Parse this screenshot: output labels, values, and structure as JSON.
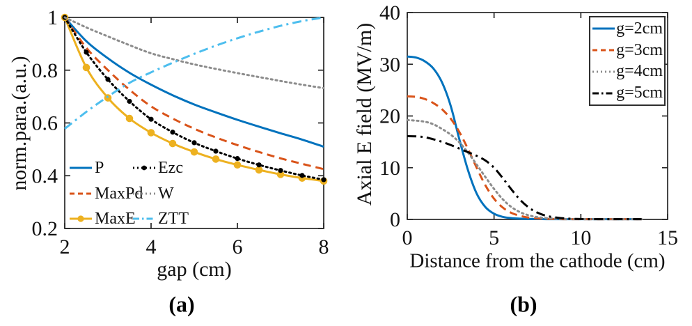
{
  "figure": {
    "caption_a": "(a)",
    "caption_b": "(b)",
    "background": "#ffffff"
  },
  "colors": {
    "blue": "#0072BD",
    "orange": "#D95319",
    "yellow": "#EDB120",
    "black": "#000000",
    "gray": "#8C8C8C",
    "lightblue": "#4DBEEE",
    "axis": "#262626"
  },
  "chart_data": [
    {
      "id": "a",
      "type": "line",
      "title": "",
      "xlabel": "gap (cm)",
      "ylabel": "norm.para.(a.u.)",
      "xlim": [
        2,
        8
      ],
      "ylim": [
        0.2,
        1
      ],
      "grid": false,
      "xticks": [
        2,
        4,
        6,
        8
      ],
      "xtick_labels": [
        "2",
        "4",
        "6",
        "8"
      ],
      "yticks": [
        0.2,
        0.4,
        0.6,
        0.8,
        1
      ],
      "ytick_labels": [
        "0.2",
        "0.4",
        "0.6",
        "0.8",
        "1"
      ],
      "legend": {
        "position": "lower-left inside, two columns",
        "boxed": false
      },
      "x": [
        2,
        2.5,
        3,
        3.5,
        4,
        4.5,
        5,
        5.5,
        6,
        6.5,
        7,
        7.5,
        8
      ],
      "series": [
        {
          "name": "P",
          "color": "blue",
          "style": "solid",
          "marker": "none",
          "values": [
            1.0,
            0.91,
            0.845,
            0.79,
            0.745,
            0.705,
            0.67,
            0.64,
            0.612,
            0.586,
            0.561,
            0.537,
            0.51
          ]
        },
        {
          "name": "MaxPd",
          "color": "orange",
          "style": "dashed",
          "marker": "none",
          "values": [
            1.0,
            0.885,
            0.8,
            0.726,
            0.663,
            0.617,
            0.578,
            0.545,
            0.516,
            0.49,
            0.466,
            0.445,
            0.425
          ]
        },
        {
          "name": "MaxE",
          "color": "yellow",
          "style": "solid",
          "marker": "circle",
          "values": [
            1.0,
            0.81,
            0.695,
            0.617,
            0.563,
            0.522,
            0.49,
            0.463,
            0.441,
            0.422,
            0.405,
            0.391,
            0.38
          ]
        },
        {
          "name": "Ezc",
          "color": "black",
          "style": "dotted",
          "marker": "dot",
          "values": [
            1.0,
            0.868,
            0.765,
            0.682,
            0.614,
            0.565,
            0.525,
            0.493,
            0.465,
            0.441,
            0.42,
            0.401,
            0.385
          ]
        },
        {
          "name": "W",
          "color": "gray",
          "style": "dotted",
          "marker": "none",
          "values": [
            1.0,
            0.962,
            0.928,
            0.895,
            0.864,
            0.842,
            0.822,
            0.805,
            0.789,
            0.774,
            0.759,
            0.745,
            0.732
          ]
        },
        {
          "name": "ZTT",
          "color": "lightblue",
          "style": "dashdot",
          "marker": "none",
          "values": [
            0.578,
            0.642,
            0.7,
            0.752,
            0.792,
            0.828,
            0.862,
            0.893,
            0.921,
            0.946,
            0.968,
            0.986,
            1.0
          ]
        }
      ]
    },
    {
      "id": "b",
      "type": "line",
      "title": "",
      "xlabel": "Distance from the cathode (cm)",
      "ylabel": "Axial E field (MV/m)",
      "xlim": [
        0,
        15
      ],
      "ylim": [
        0,
        40
      ],
      "grid": false,
      "xticks": [
        0,
        5,
        10,
        15
      ],
      "xtick_labels": [
        "0",
        "5",
        "10",
        "15"
      ],
      "yticks": [
        0,
        10,
        20,
        30,
        40
      ],
      "ytick_labels": [
        "0",
        "10",
        "20",
        "30",
        "40"
      ],
      "legend": {
        "position": "upper-right inside",
        "boxed": true
      },
      "x": [
        0,
        0.5,
        1,
        1.5,
        2,
        2.5,
        3,
        3.5,
        4,
        4.5,
        5,
        5.5,
        6,
        6.5,
        7,
        7.5,
        8,
        8.5,
        9,
        9.5,
        10,
        10.5,
        11,
        11.5,
        12,
        12.5,
        13,
        13.5
      ],
      "series": [
        {
          "name": "g=2cm",
          "color": "blue",
          "style": "solid",
          "marker": "none",
          "values": [
            31.5,
            31.3,
            30.6,
            29.2,
            26.5,
            22.0,
            15.5,
            9.5,
            5.0,
            2.4,
            1.1,
            0.5,
            0.25,
            0.15,
            0.1,
            0.08,
            0.06,
            0.05,
            0.05,
            0.05,
            0.05,
            0.05,
            0.05,
            0.05,
            0.05,
            0.05,
            0.05,
            0.05
          ]
        },
        {
          "name": "g=3cm",
          "color": "orange",
          "style": "dashed",
          "marker": "none",
          "values": [
            23.8,
            23.7,
            23.3,
            22.5,
            21.3,
            19.5,
            16.9,
            13.6,
            10.0,
            6.6,
            4.0,
            2.3,
            1.25,
            0.7,
            0.35,
            0.2,
            0.12,
            0.08,
            0.05,
            0.05,
            0.05,
            0.05,
            0.05,
            0.05,
            0.05,
            0.05,
            0.05,
            0.05
          ]
        },
        {
          "name": "g=4cm",
          "color": "gray",
          "style": "dotted",
          "marker": "none",
          "values": [
            19.2,
            19.1,
            18.9,
            18.4,
            17.5,
            16.4,
            14.9,
            12.9,
            10.6,
            8.2,
            5.9,
            3.9,
            2.4,
            1.4,
            0.8,
            0.45,
            0.25,
            0.15,
            0.1,
            0.07,
            0.05,
            0.05,
            0.05,
            0.05,
            0.05,
            0.05,
            0.05,
            0.05
          ]
        },
        {
          "name": "g=5cm",
          "color": "black",
          "style": "dashdot",
          "marker": "none",
          "values": [
            16.1,
            16.05,
            15.9,
            15.5,
            15.0,
            14.4,
            13.7,
            13.0,
            12.3,
            11.4,
            10.0,
            8.0,
            5.8,
            3.8,
            2.3,
            1.3,
            0.7,
            0.4,
            0.22,
            0.12,
            0.08,
            0.05,
            0.05,
            0.05,
            0.05,
            0.05,
            0.05,
            0.05
          ]
        }
      ]
    }
  ]
}
